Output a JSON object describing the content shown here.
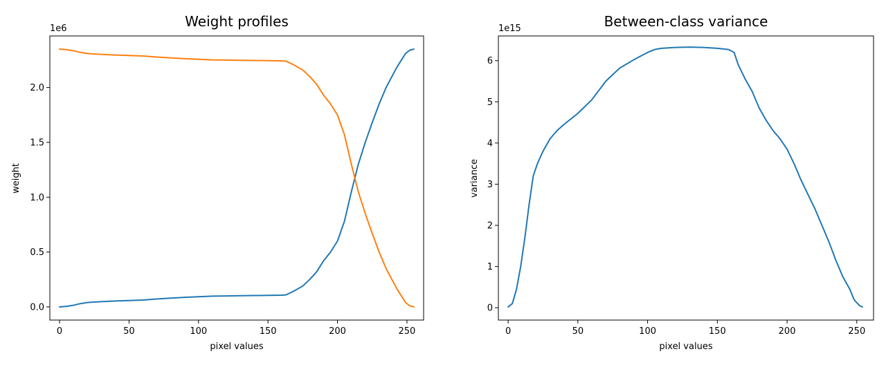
{
  "chart_data": [
    {
      "type": "line",
      "title": "Weight profiles",
      "xlabel": "pixel values",
      "ylabel": "weight",
      "y_offset_label": "1e6",
      "xlim": [
        -7,
        262
      ],
      "ylim": [
        -0.12,
        2.47
      ],
      "x_ticks": [
        0,
        50,
        100,
        150,
        200,
        250
      ],
      "x_tick_labels": [
        "0",
        "50",
        "100",
        "150",
        "200",
        "250"
      ],
      "y_ticks": [
        0.0,
        0.5,
        1.0,
        1.5,
        2.0
      ],
      "y_tick_labels": [
        "0.0",
        "0.5",
        "1.0",
        "1.5",
        "2.0"
      ],
      "grid": false,
      "series": [
        {
          "color": "#1f77b4",
          "x": [
            0,
            5,
            10,
            15,
            20,
            30,
            40,
            50,
            60,
            70,
            80,
            90,
            100,
            110,
            120,
            130,
            140,
            150,
            160,
            163,
            168,
            175,
            180,
            185,
            190,
            195,
            200,
            205,
            210,
            215,
            220,
            225,
            230,
            235,
            240,
            243,
            246,
            249,
            252,
            255
          ],
          "y": [
            0.0,
            0.005,
            0.015,
            0.03,
            0.04,
            0.048,
            0.054,
            0.058,
            0.063,
            0.072,
            0.08,
            0.087,
            0.093,
            0.098,
            0.1,
            0.102,
            0.104,
            0.105,
            0.107,
            0.11,
            0.14,
            0.19,
            0.25,
            0.32,
            0.42,
            0.5,
            0.6,
            0.78,
            1.05,
            1.3,
            1.5,
            1.68,
            1.85,
            2.0,
            2.12,
            2.19,
            2.25,
            2.31,
            2.34,
            2.35
          ]
        },
        {
          "color": "#ff7f0e",
          "x": [
            0,
            5,
            10,
            15,
            20,
            30,
            40,
            50,
            60,
            70,
            80,
            90,
            100,
            110,
            120,
            130,
            140,
            150,
            160,
            163,
            168,
            175,
            180,
            185,
            190,
            195,
            200,
            205,
            210,
            215,
            220,
            225,
            230,
            235,
            240,
            243,
            246,
            249,
            252,
            255
          ],
          "y": [
            2.35,
            2.345,
            2.335,
            2.32,
            2.31,
            2.302,
            2.296,
            2.292,
            2.287,
            2.278,
            2.27,
            2.263,
            2.257,
            2.252,
            2.25,
            2.248,
            2.246,
            2.245,
            2.243,
            2.24,
            2.21,
            2.16,
            2.1,
            2.03,
            1.93,
            1.85,
            1.75,
            1.57,
            1.3,
            1.05,
            0.85,
            0.67,
            0.5,
            0.35,
            0.23,
            0.16,
            0.1,
            0.04,
            0.01,
            0.0
          ]
        }
      ]
    },
    {
      "type": "line",
      "title": "Between-class variance",
      "xlabel": "pixel values",
      "ylabel": "variance",
      "y_offset_label": "1e15",
      "xlim": [
        -7,
        262
      ],
      "ylim": [
        -0.3,
        6.6
      ],
      "x_ticks": [
        0,
        50,
        100,
        150,
        200,
        250
      ],
      "x_tick_labels": [
        "0",
        "50",
        "100",
        "150",
        "200",
        "250"
      ],
      "y_ticks": [
        0,
        1,
        2,
        3,
        4,
        5,
        6
      ],
      "y_tick_labels": [
        "0",
        "1",
        "2",
        "3",
        "4",
        "5",
        "6"
      ],
      "grid": false,
      "series": [
        {
          "color": "#1f77b4",
          "x": [
            0,
            3,
            6,
            9,
            12,
            15,
            18,
            21,
            25,
            30,
            35,
            40,
            50,
            60,
            70,
            80,
            90,
            100,
            105,
            110,
            120,
            130,
            140,
            150,
            158,
            162,
            165,
            170,
            175,
            180,
            185,
            190,
            195,
            200,
            205,
            210,
            215,
            220,
            225,
            230,
            235,
            240,
            245,
            248,
            250,
            252,
            254
          ],
          "y": [
            0.02,
            0.1,
            0.45,
            1.0,
            1.7,
            2.5,
            3.2,
            3.5,
            3.8,
            4.1,
            4.3,
            4.45,
            4.72,
            5.05,
            5.5,
            5.82,
            6.02,
            6.2,
            6.27,
            6.3,
            6.32,
            6.33,
            6.32,
            6.3,
            6.27,
            6.2,
            5.9,
            5.55,
            5.25,
            4.85,
            4.55,
            4.3,
            4.1,
            3.85,
            3.5,
            3.1,
            2.75,
            2.4,
            2.0,
            1.6,
            1.15,
            0.75,
            0.45,
            0.2,
            0.12,
            0.05,
            0.02
          ]
        }
      ]
    }
  ]
}
